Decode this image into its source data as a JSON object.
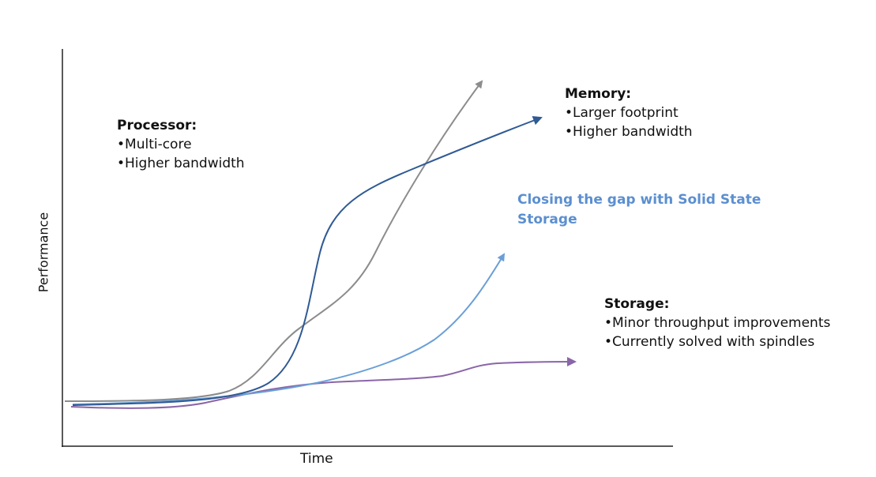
{
  "axes": {
    "x_label": "Time",
    "y_label": "Performance"
  },
  "annotations": {
    "processor": {
      "title": "Processor:",
      "bullets": [
        "•Multi-core",
        "•Higher bandwidth"
      ]
    },
    "memory": {
      "title": "Memory:",
      "bullets": [
        "•Larger footprint",
        "•Higher bandwidth"
      ]
    },
    "gap": {
      "text": "Closing the gap with Solid State Storage"
    },
    "storage": {
      "title": "Storage:",
      "bullets": [
        "•Minor throughput improvements",
        "•Currently solved with spindles"
      ]
    }
  },
  "colors": {
    "processor_curve": "#8c8c8c",
    "memory_curve": "#2f5a94",
    "ssd_curve": "#6a9fd8",
    "storage_curve": "#8a65a8",
    "gap_text": "#5b8fd0"
  }
}
